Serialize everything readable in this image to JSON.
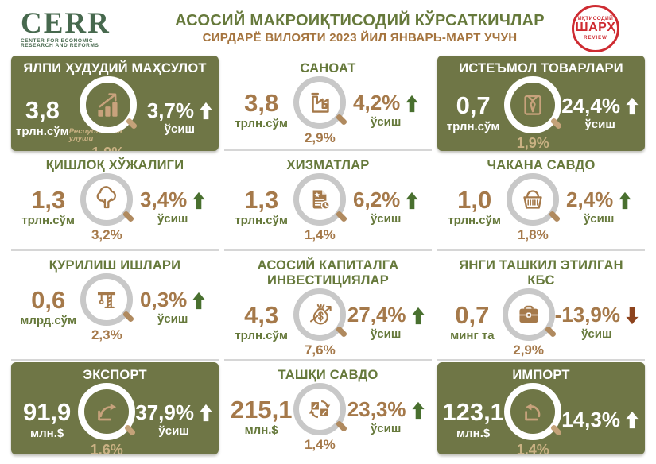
{
  "header": {
    "cerr_name": "CERR",
    "cerr_caption": "CENTER FOR ECONOMIC RESEARCH AND REFORMS",
    "title": "АСОСИЙ МАКРОИҚТИСОДИЙ КЎРСАТКИЧЛАР",
    "subtitle": "СИРДАРЁ ВИЛОЯТИ 2023 ЙИЛ ЯНВАРЬ-МАРТ УЧУН",
    "review_top": "ИҚТИСОДИЙ",
    "review_main": "ШАРҲ",
    "review_bottom": "REVIEW"
  },
  "colors": {
    "olive": "#6f7646",
    "green": "#66793b",
    "brown": "#a5794a",
    "tan": "#c9b183",
    "arrow-green": "#49702f",
    "arrow-down": "#8d431d",
    "red": "#ce2b31"
  },
  "cards": [
    {
      "id": "grp",
      "theme": "olive",
      "icon": "bar-chart-magnifier",
      "title": "ЯЛПИ ҲУДУДИЙ МАҲСУЛОТ",
      "value": "3,8",
      "unit": "трлн.сўм",
      "share_label": "Республикада улуши",
      "share": "1,9%",
      "growth": "3,7%",
      "growth_label": "ўсиш",
      "direction": "up"
    },
    {
      "id": "industry",
      "theme": "light",
      "icon": "factory",
      "title": "САНОАТ",
      "value": "3,8",
      "unit": "трлн.сўм",
      "share": "2,9%",
      "growth": "4,2%",
      "growth_label": "ўсиш",
      "direction": "up"
    },
    {
      "id": "consumer-goods",
      "theme": "olive",
      "icon": "shirt",
      "title": "ИСТЕЪМОЛ ТОВАРЛАРИ",
      "value": "0,7",
      "unit": "трлн.сўм",
      "share": "1,9%",
      "growth": "24,4%",
      "growth_label": "ўсиш",
      "direction": "up"
    },
    {
      "id": "agriculture",
      "theme": "light",
      "icon": "tree",
      "title": "ҚИШЛОҚ ХЎЖАЛИГИ",
      "value": "1,3",
      "unit": "трлн.сўм",
      "share": "3,2%",
      "growth": "3,4%",
      "growth_label": "ўсиш",
      "direction": "up"
    },
    {
      "id": "services",
      "theme": "light",
      "icon": "document",
      "title": "ХИЗМАТЛАР",
      "value": "1,3",
      "unit": "трлн.сўм",
      "share": "1,4%",
      "growth": "6,2%",
      "growth_label": "ўсиш",
      "direction": "up"
    },
    {
      "id": "retail",
      "theme": "light",
      "icon": "basket",
      "title": "ЧАКАНА САВДО",
      "value": "1,0",
      "unit": "трлн.сўм",
      "share": "1,8%",
      "growth": "2,4%",
      "growth_label": "ўсиш",
      "direction": "up"
    },
    {
      "id": "construction",
      "theme": "light",
      "icon": "crane",
      "title": "ҚУРИЛИШ ИШЛАРИ",
      "value": "0,6",
      "unit": "млрд.сўм",
      "share": "2,3%",
      "growth": "0,3%",
      "growth_label": "ўсиш",
      "direction": "up"
    },
    {
      "id": "investment",
      "theme": "light",
      "icon": "money-bag",
      "title": "АСОСИЙ КАПИТАЛГА ИНВЕСТИЦИЯЛАР",
      "value": "4,3",
      "unit": "трлн.сўм",
      "share": "7,6%",
      "growth": "27,4%",
      "growth_label": "ўсиш",
      "direction": "up"
    },
    {
      "id": "new-smb",
      "theme": "light",
      "icon": "briefcase",
      "title": "ЯНГИ ТАШКИЛ ЭТИЛГАН КБС",
      "value": "0,7",
      "unit": "минг та",
      "share": "2,9%",
      "growth": "-13,9%",
      "growth_label": "ўсиш",
      "direction": "down"
    },
    {
      "id": "export",
      "theme": "olive",
      "icon": "export-arrow",
      "title": "ЭКСПОРТ",
      "value": "91,9",
      "unit": "млн.$",
      "share": "1,6%",
      "growth": "37,9%",
      "growth_label": "ўсиш",
      "direction": "up"
    },
    {
      "id": "foreign-trade",
      "theme": "light",
      "icon": "exchange",
      "title": "ТАШҚИ САВДО",
      "value": "215,1",
      "unit": "млн.$",
      "share": "1,4%",
      "growth": "23,3%",
      "growth_label": "ўсиш",
      "direction": "up"
    },
    {
      "id": "import",
      "theme": "olive",
      "icon": "import-arrow",
      "title": "ИМПОРТ",
      "value": "123,1",
      "unit": "млн.$",
      "share": "1,4%",
      "growth": "14,3%",
      "growth_label": "",
      "direction": "up"
    }
  ],
  "chart_data": {
    "type": "table",
    "title": "АСОСИЙ МАКРОИҚТИСОДИЙ КЎРСАТКИЧЛАР — СИРДАРЁ ВИЛОЯТИ 2023 ЙИЛ ЯНВАРЬ-МАРТ УЧУН",
    "columns": [
      "indicator",
      "value",
      "unit",
      "share_in_republic_pct",
      "growth_pct"
    ],
    "rows": [
      [
        "ЯЛПИ ҲУДУДИЙ МАҲСУЛОТ",
        3.8,
        "трлн.сўм",
        1.9,
        3.7
      ],
      [
        "САНОАТ",
        3.8,
        "трлн.сўм",
        2.9,
        4.2
      ],
      [
        "ИСТЕЪМОЛ ТОВАРЛАРИ",
        0.7,
        "трлн.сўм",
        1.9,
        24.4
      ],
      [
        "ҚИШЛОҚ ХЎЖАЛИГИ",
        1.3,
        "трлн.сўм",
        3.2,
        3.4
      ],
      [
        "ХИЗМАТЛАР",
        1.3,
        "трлн.сўм",
        1.4,
        6.2
      ],
      [
        "ЧАКАНА САВДО",
        1.0,
        "трлн.сўм",
        1.8,
        2.4
      ],
      [
        "ҚУРИЛИШ ИШЛАРИ",
        0.6,
        "млрд.сўм",
        2.3,
        0.3
      ],
      [
        "АСОСИЙ КАПИТАЛГА ИНВЕСТИЦИЯЛАР",
        4.3,
        "трлн.сўм",
        7.6,
        27.4
      ],
      [
        "ЯНГИ ТАШКИЛ ЭТИЛГАН КБС",
        0.7,
        "минг та",
        2.9,
        -13.9
      ],
      [
        "ЭКСПОРТ",
        91.9,
        "млн.$",
        1.6,
        37.9
      ],
      [
        "ТАШҚИ САВДО",
        215.1,
        "млн.$",
        1.4,
        23.3
      ],
      [
        "ИМПОРТ",
        123.1,
        "млн.$",
        1.4,
        14.3
      ]
    ]
  }
}
